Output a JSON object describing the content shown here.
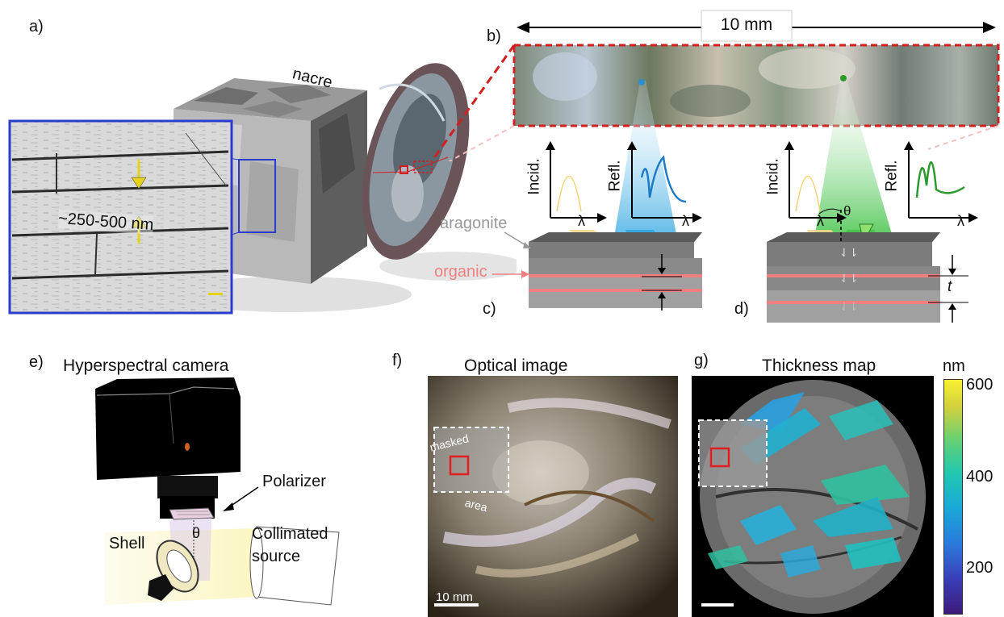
{
  "panels": {
    "a": {
      "letter": "a)",
      "sem_label": "~250-500 nm",
      "cube_label": "nacre"
    },
    "b": {
      "letter": "b)",
      "scale_label": "10 mm"
    },
    "c": {
      "letter": "c)",
      "incid": "Incid.",
      "refl": "Refl.",
      "lambda": "λ",
      "aragonite": "aragonite",
      "organic": "organic"
    },
    "d": {
      "letter": "d)",
      "incid": "Incid.",
      "refl": "Refl.",
      "lambda": "λ",
      "theta": "θ",
      "t": "t"
    },
    "e": {
      "letter": "e)",
      "title": "Hyperspectral camera",
      "polarizer": "Polarizer",
      "shell": "Shell",
      "theta": "θ",
      "source_line1": "Collimated",
      "source_line2": "source"
    },
    "f": {
      "letter": "f)",
      "title": "Optical image",
      "masked": "masked",
      "area": "area",
      "scale": "10 mm"
    },
    "g": {
      "letter": "g)",
      "title": "Thickness map",
      "unit": "nm",
      "ticks": [
        "600",
        "400",
        "200"
      ]
    }
  },
  "colors": {
    "blue_frame": "#2b3ccc",
    "red_dashed": "#d02020",
    "organic": "#f08080",
    "blue_curve": "#1c7ac8",
    "green_curve": "#2a9a2a",
    "yellow_arrow": "#e6d21a"
  }
}
